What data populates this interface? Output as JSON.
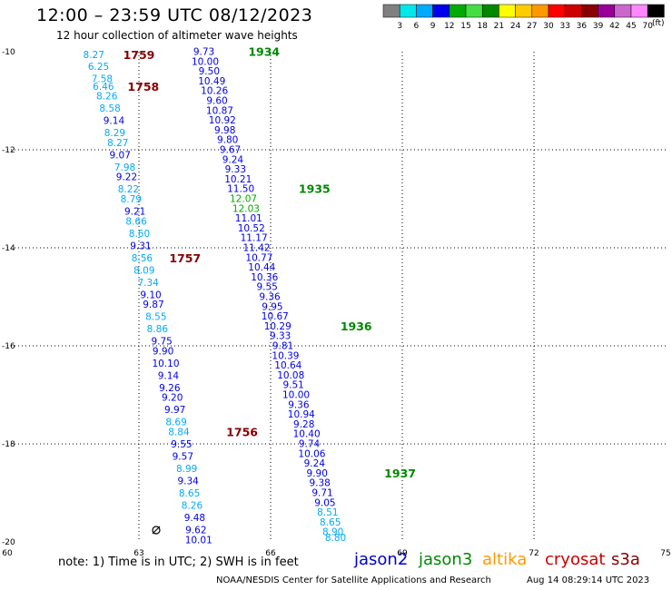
{
  "header": {
    "title": "12:00 – 23:59 UTC 08/12/2023",
    "subtitle": "12 hour collection of altimeter wave heights"
  },
  "note": "note: 1) Time is in UTC; 2) SWH is in feet",
  "satellites": [
    {
      "name": "jason2",
      "color": "#0000cc"
    },
    {
      "name": "jason3",
      "color": "#008800"
    },
    {
      "name": "altika",
      "color": "#ff9900"
    },
    {
      "name": "cryosat",
      "color": "#cc0000"
    },
    {
      "name": "s3a",
      "color": "#880000"
    }
  ],
  "footer": {
    "credit": "NOAA/NESDIS Center for Satellite Applications and Research",
    "timestamp": "Aug 14 08:29:14 UTC 2023"
  },
  "color_scale": {
    "unit": "(ft)",
    "colors": [
      "#808080",
      "#00e8e8",
      "#00aaff",
      "#0000ee",
      "#00aa00",
      "#44dd44",
      "#008800",
      "#ffff00",
      "#ffcc00",
      "#ff9900",
      "#ff0000",
      "#cc0000",
      "#880000",
      "#990099",
      "#cc66cc",
      "#ff88ff",
      "#000000"
    ],
    "labels": [
      "3",
      "6",
      "9",
      "12",
      "15",
      "18",
      "21",
      "24",
      "27",
      "30",
      "33",
      "36",
      "39",
      "42",
      "45",
      "70"
    ]
  },
  "chart_data": {
    "type": "scatter",
    "title": "12:00 – 23:59 UTC 08/12/2023",
    "subtitle": "12 hour collection of altimeter wave heights",
    "x_ticks": [
      60,
      63,
      66,
      69,
      72,
      75
    ],
    "y_ticks": [
      -10,
      -12,
      -14,
      -16,
      -18,
      -20
    ],
    "xlim": [
      60,
      75
    ],
    "ylim": [
      -20,
      -10
    ],
    "grid": true,
    "tracks": [
      {
        "points": [
          {
            "x": 61.97,
            "y": -10.06,
            "v": "8.27"
          },
          {
            "x": 62.08,
            "y": -10.3,
            "v": "6.25"
          },
          {
            "x": 62.16,
            "y": -10.55,
            "v": "7.58"
          },
          {
            "x": 62.19,
            "y": -10.7,
            "v": "6.46"
          },
          {
            "x": 62.27,
            "y": -10.9,
            "v": "8.26"
          },
          {
            "x": 62.34,
            "y": -11.15,
            "v": "8.58"
          },
          {
            "x": 62.43,
            "y": -11.4,
            "v": "9.14"
          },
          {
            "x": 62.45,
            "y": -11.65,
            "v": "8.29"
          },
          {
            "x": 62.52,
            "y": -11.85,
            "v": "8.27"
          },
          {
            "x": 62.57,
            "y": -12.1,
            "v": "9.07"
          },
          {
            "x": 62.68,
            "y": -12.35,
            "v": "7.98"
          },
          {
            "x": 62.72,
            "y": -12.55,
            "v": "9.22"
          },
          {
            "x": 62.76,
            "y": -12.8,
            "v": "8.22"
          },
          {
            "x": 62.82,
            "y": -13.0,
            "v": "8.79"
          },
          {
            "x": 62.91,
            "y": -13.25,
            "v": "9.21"
          },
          {
            "x": 62.94,
            "y": -13.45,
            "v": "8.66"
          },
          {
            "x": 63.01,
            "y": -13.7,
            "v": "8.60"
          },
          {
            "x": 63.04,
            "y": -13.95,
            "v": "9.31"
          },
          {
            "x": 63.07,
            "y": -14.2,
            "v": "8.56"
          },
          {
            "x": 63.12,
            "y": -14.45,
            "v": "8.09"
          },
          {
            "x": 63.21,
            "y": -14.7,
            "v": "7.34"
          },
          {
            "x": 63.27,
            "y": -14.95,
            "v": "9.10"
          },
          {
            "x": 63.33,
            "y": -15.15,
            "v": "9.87"
          },
          {
            "x": 63.39,
            "y": -15.4,
            "v": "8.55"
          },
          {
            "x": 63.42,
            "y": -15.65,
            "v": "8.86"
          },
          {
            "x": 63.52,
            "y": -15.9,
            "v": "9.75"
          },
          {
            "x": 63.55,
            "y": -16.1,
            "v": "9.90"
          },
          {
            "x": 63.61,
            "y": -16.35,
            "v": "10.10"
          },
          {
            "x": 63.67,
            "y": -16.6,
            "v": "9.14"
          },
          {
            "x": 63.7,
            "y": -16.85,
            "v": "9.26"
          },
          {
            "x": 63.76,
            "y": -17.05,
            "v": "9.20"
          },
          {
            "x": 63.82,
            "y": -17.3,
            "v": "9.97"
          },
          {
            "x": 63.85,
            "y": -17.55,
            "v": "8.69"
          },
          {
            "x": 63.91,
            "y": -17.75,
            "v": "8.84"
          },
          {
            "x": 63.97,
            "y": -18.0,
            "v": "9.55"
          },
          {
            "x": 64.0,
            "y": -18.25,
            "v": "9.57"
          },
          {
            "x": 64.09,
            "y": -18.5,
            "v": "8.99"
          },
          {
            "x": 64.12,
            "y": -18.75,
            "v": "9.34"
          },
          {
            "x": 64.15,
            "y": -19.0,
            "v": "8.65"
          },
          {
            "x": 64.21,
            "y": -19.25,
            "v": "8.26"
          },
          {
            "x": 64.27,
            "y": -19.5,
            "v": "9.48"
          },
          {
            "x": 64.3,
            "y": -19.75,
            "v": "9.62"
          },
          {
            "x": 64.36,
            "y": -19.95,
            "v": "10.01"
          }
        ]
      },
      {
        "points": [
          {
            "x": 64.48,
            "y": -9.99,
            "v": "9.73"
          },
          {
            "x": 64.51,
            "y": -10.19,
            "v": "10.00"
          },
          {
            "x": 64.6,
            "y": -10.39,
            "v": "9.50"
          },
          {
            "x": 64.66,
            "y": -10.59,
            "v": "10.49"
          },
          {
            "x": 64.72,
            "y": -10.79,
            "v": "10.26"
          },
          {
            "x": 64.78,
            "y": -10.99,
            "v": "9.60"
          },
          {
            "x": 64.84,
            "y": -11.19,
            "v": "10.87"
          },
          {
            "x": 64.9,
            "y": -11.39,
            "v": "10.92"
          },
          {
            "x": 64.96,
            "y": -11.59,
            "v": "9.98"
          },
          {
            "x": 65.02,
            "y": -11.79,
            "v": "9.80"
          },
          {
            "x": 65.08,
            "y": -11.99,
            "v": "9.67"
          },
          {
            "x": 65.14,
            "y": -12.19,
            "v": "9.24"
          },
          {
            "x": 65.2,
            "y": -12.39,
            "v": "9.33"
          },
          {
            "x": 65.26,
            "y": -12.59,
            "v": "10.21"
          },
          {
            "x": 65.32,
            "y": -12.79,
            "v": "11.50"
          },
          {
            "x": 65.38,
            "y": -12.99,
            "v": "12.07"
          },
          {
            "x": 65.44,
            "y": -13.19,
            "v": "12.03"
          },
          {
            "x": 65.5,
            "y": -13.39,
            "v": "11.01"
          },
          {
            "x": 65.56,
            "y": -13.59,
            "v": "10.52"
          },
          {
            "x": 65.62,
            "y": -13.79,
            "v": "11.17"
          },
          {
            "x": 65.68,
            "y": -13.99,
            "v": "11.42"
          },
          {
            "x": 65.74,
            "y": -14.19,
            "v": "10.77"
          },
          {
            "x": 65.8,
            "y": -14.39,
            "v": "10.44"
          },
          {
            "x": 65.86,
            "y": -14.59,
            "v": "10.36"
          },
          {
            "x": 65.92,
            "y": -14.79,
            "v": "9.55"
          },
          {
            "x": 65.98,
            "y": -14.99,
            "v": "9.36"
          },
          {
            "x": 66.04,
            "y": -15.19,
            "v": "9.95"
          },
          {
            "x": 66.1,
            "y": -15.39,
            "v": "10.67"
          },
          {
            "x": 66.16,
            "y": -15.59,
            "v": "10.29"
          },
          {
            "x": 66.22,
            "y": -15.79,
            "v": "9.33"
          },
          {
            "x": 66.28,
            "y": -15.99,
            "v": "9.81"
          },
          {
            "x": 66.34,
            "y": -16.19,
            "v": "10.39"
          },
          {
            "x": 66.4,
            "y": -16.39,
            "v": "10.64"
          },
          {
            "x": 66.46,
            "y": -16.59,
            "v": "10.08"
          },
          {
            "x": 66.52,
            "y": -16.79,
            "v": "9.51"
          },
          {
            "x": 66.58,
            "y": -16.99,
            "v": "10.00"
          },
          {
            "x": 66.64,
            "y": -17.19,
            "v": "9.36"
          },
          {
            "x": 66.7,
            "y": -17.39,
            "v": "10.94"
          },
          {
            "x": 66.76,
            "y": -17.59,
            "v": "9.28"
          },
          {
            "x": 66.82,
            "y": -17.79,
            "v": "10.40"
          },
          {
            "x": 66.88,
            "y": -17.99,
            "v": "9.74"
          },
          {
            "x": 66.94,
            "y": -18.19,
            "v": "10.06"
          },
          {
            "x": 67.0,
            "y": -18.39,
            "v": "9.24"
          },
          {
            "x": 67.06,
            "y": -18.59,
            "v": "9.90"
          },
          {
            "x": 67.12,
            "y": -18.79,
            "v": "9.38"
          },
          {
            "x": 67.18,
            "y": -18.99,
            "v": "9.71"
          },
          {
            "x": 67.24,
            "y": -19.19,
            "v": "9.05"
          },
          {
            "x": 67.3,
            "y": -19.39,
            "v": "8.51"
          },
          {
            "x": 67.36,
            "y": -19.59,
            "v": "8.65"
          },
          {
            "x": 67.42,
            "y": -19.79,
            "v": "8.90"
          },
          {
            "x": 67.48,
            "y": -19.91,
            "v": "8.80"
          }
        ]
      }
    ],
    "time_labels": [
      {
        "text": "1759",
        "x": 63.0,
        "y": -10.06,
        "sat": "s3a"
      },
      {
        "text": "1758",
        "x": 63.1,
        "y": -10.7,
        "sat": "s3a"
      },
      {
        "text": "1757",
        "x": 64.05,
        "y": -14.2,
        "sat": "s3a"
      },
      {
        "text": "1756",
        "x": 65.35,
        "y": -17.75,
        "sat": "s3a"
      },
      {
        "text": "1934",
        "x": 65.85,
        "y": -9.99,
        "sat": "jason3"
      },
      {
        "text": "1935",
        "x": 67.0,
        "y": -12.79,
        "sat": "jason3"
      },
      {
        "text": "1936",
        "x": 67.95,
        "y": -15.59,
        "sat": "jason3"
      },
      {
        "text": "1937",
        "x": 68.95,
        "y": -18.59,
        "sat": "jason3"
      }
    ]
  }
}
